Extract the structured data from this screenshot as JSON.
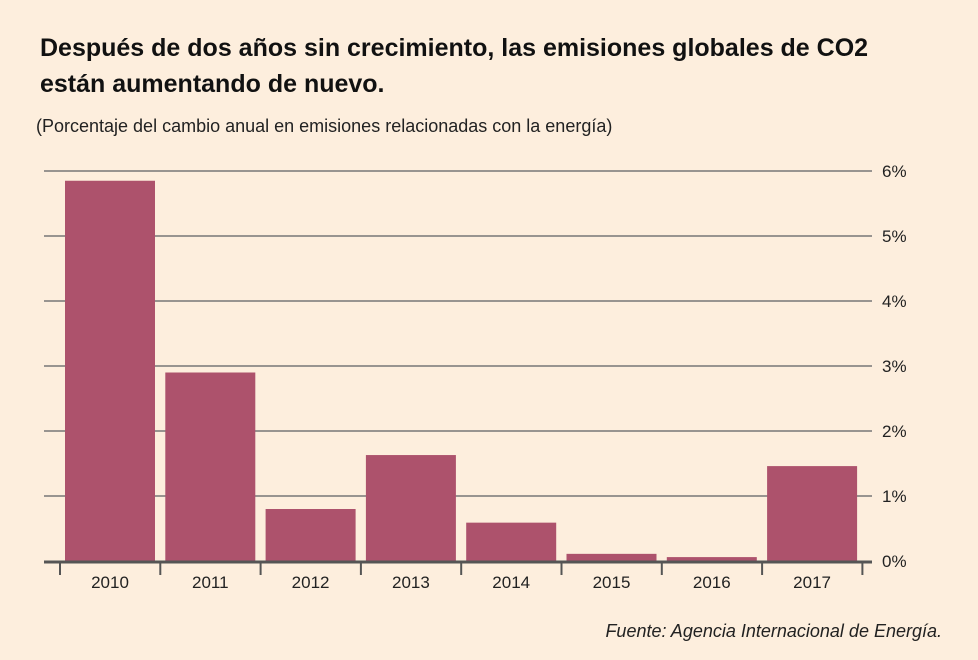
{
  "chart_data": {
    "type": "bar",
    "title": "Después de dos años sin crecimiento, las emisiones globales de CO2 están aumentando de nuevo.",
    "subtitle": "(Porcentaje del cambio anual en emisiones relacionadas con la energía)",
    "categories": [
      "2010",
      "2011",
      "2012",
      "2013",
      "2014",
      "2015",
      "2016",
      "2017"
    ],
    "values": [
      5.85,
      2.9,
      0.8,
      1.63,
      0.59,
      0.11,
      0.06,
      1.46
    ],
    "ylim": [
      0,
      6
    ],
    "yticks": [
      "0%",
      "1%",
      "2%",
      "3%",
      "4%",
      "5%",
      "6%"
    ],
    "y_axis_side": "right",
    "grid": true,
    "bar_color": "#ad526c"
  },
  "source": "Fuente: Agencia Internacional de Energía."
}
